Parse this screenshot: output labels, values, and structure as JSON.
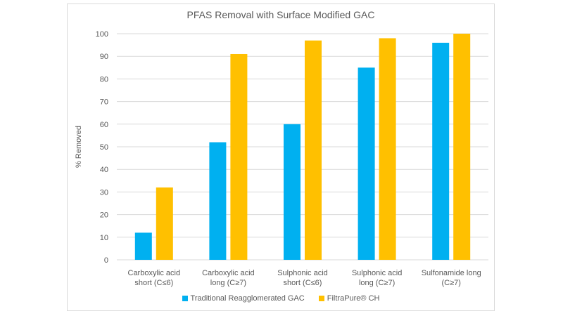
{
  "chart_data": {
    "type": "bar",
    "title": "PFAS Removal with Surface Modified GAC",
    "ylabel": "% Removed",
    "xlabel": "",
    "ylim": [
      0,
      100
    ],
    "yticks": [
      0,
      10,
      20,
      30,
      40,
      50,
      60,
      70,
      80,
      90,
      100
    ],
    "grid": true,
    "legend": "bottom",
    "categories": [
      [
        "Carboxylic acid",
        "short (C≤6)"
      ],
      [
        "Carboxylic acid",
        "long (C≥7)"
      ],
      [
        "Sulphonic acid",
        "short (C≤6)"
      ],
      [
        "Sulphonic acid",
        "long (C≥7)"
      ],
      [
        "Sulfonamide long",
        "(C≥7)"
      ]
    ],
    "series": [
      {
        "name": "Traditional Reagglomerated GAC",
        "color": "#00B0F0",
        "values": [
          12,
          52,
          60,
          85,
          96
        ]
      },
      {
        "name": "FiltraPure® CH",
        "color": "#FFC000",
        "values": [
          32,
          91,
          97,
          98,
          100
        ]
      }
    ]
  }
}
